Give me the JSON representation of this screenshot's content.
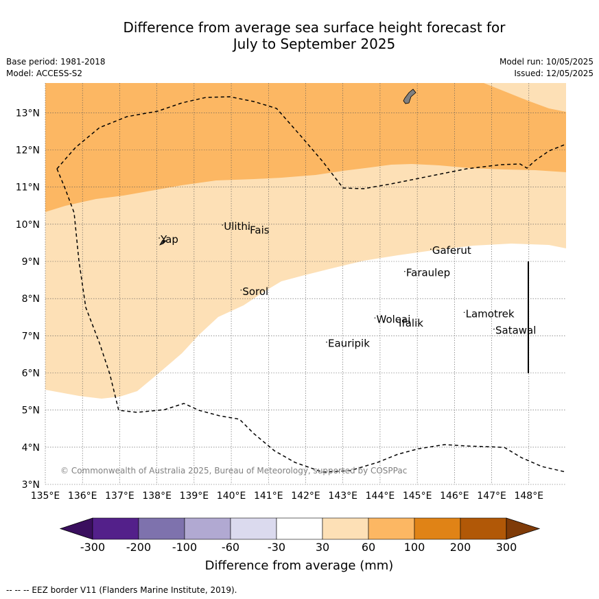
{
  "title_line1": "Difference from average sea surface height forecast for",
  "title_line2": "July to September 2025",
  "base_period": "Base period: 1981-2018",
  "model": "Model: ACCESS-S2",
  "model_run": "Model run: 10/05/2025",
  "issued": "Issued: 12/05/2025",
  "copyright": "© Commonwealth of Australia 2025, Bureau of Meteorology, supported by COSPPac",
  "footer": "--  --  -- EEZ border V11 (Flanders Marine Institute, 2019).",
  "colors": {
    "deep_purple": "#3a0f5e",
    "purple": "#53208a",
    "mid_purple": "#7e72ad",
    "light_purple": "#b1a9d2",
    "pale_purple": "#dbdaee",
    "neutral": "#ffffff",
    "light_orange": "#fde0b6",
    "orange": "#fcb763",
    "dark_orange": "#e08316",
    "brown": "#b15807",
    "deep_brown": "#7f3b08"
  },
  "map": {
    "lon_labels": [
      "135°E",
      "136°E",
      "137°E",
      "138°E",
      "139°E",
      "140°E",
      "141°E",
      "142°E",
      "143°E",
      "144°E",
      "145°E",
      "146°E",
      "147°E",
      "148°E"
    ],
    "lat_labels": [
      "3°N",
      "4°N",
      "5°N",
      "6°N",
      "7°N",
      "8°N",
      "9°N",
      "10°N",
      "11°N",
      "12°N",
      "13°N"
    ],
    "places": [
      {
        "name": "Ulithi",
        "lon": 139.8,
        "lat": 9.85
      },
      {
        "name": "Fais",
        "lon": 140.5,
        "lat": 9.75
      },
      {
        "name": "Yap",
        "lon": 138.1,
        "lat": 9.5
      },
      {
        "name": "Gaferut",
        "lon": 145.4,
        "lat": 9.2
      },
      {
        "name": "Faraulep",
        "lon": 144.7,
        "lat": 8.6
      },
      {
        "name": "Sorol",
        "lon": 140.3,
        "lat": 8.1
      },
      {
        "name": "Woleai",
        "lon": 143.9,
        "lat": 7.35
      },
      {
        "name": "Ifalik",
        "lon": 144.5,
        "lat": 7.25
      },
      {
        "name": "Lamotrek",
        "lon": 146.3,
        "lat": 7.5
      },
      {
        "name": "Satawal",
        "lon": 147.1,
        "lat": 7.05
      },
      {
        "name": "Eauripik",
        "lon": 142.6,
        "lat": 6.7
      }
    ]
  },
  "colorbar": {
    "labels": [
      "-300",
      "-200",
      "-100",
      "-60",
      "-30",
      "30",
      "60",
      "100",
      "200",
      "300"
    ],
    "title": "Difference from average (mm)"
  }
}
